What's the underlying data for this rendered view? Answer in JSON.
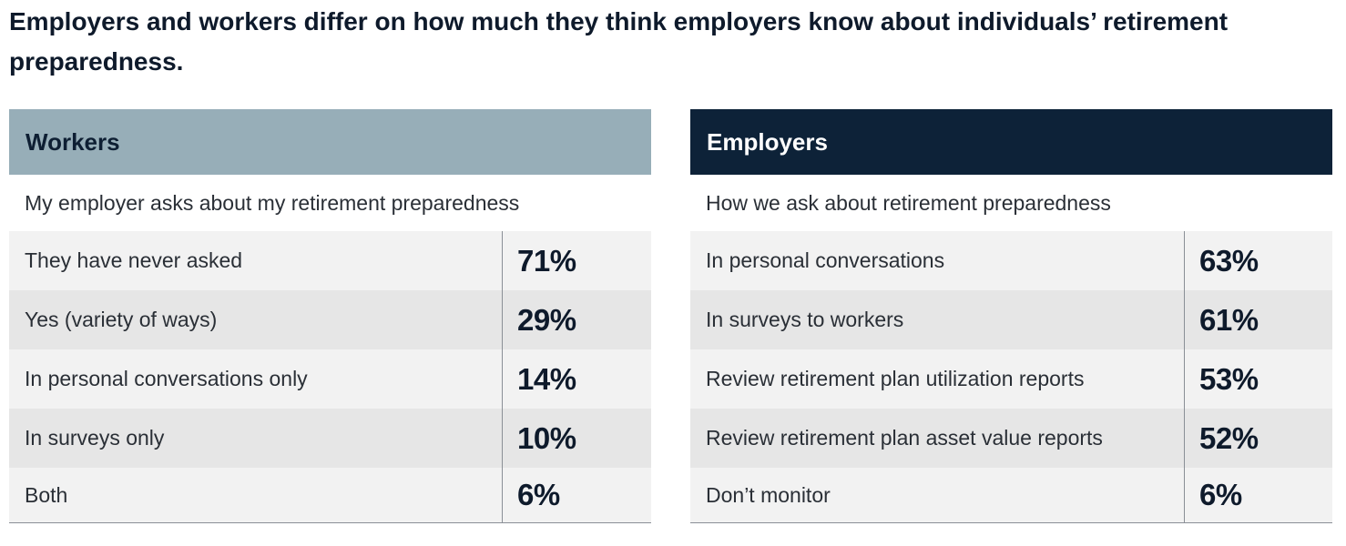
{
  "title": "Employers and workers differ on how much they think employers know about individuals’ retirement preparedness.",
  "workers": {
    "heading": "Workers",
    "subtitle": "My employer asks about my retirement preparedness",
    "rows": [
      {
        "label": "They have never asked",
        "value": "71%"
      },
      {
        "label": "Yes (variety of ways)",
        "value": "29%"
      },
      {
        "label": "In personal conversations only",
        "value": "14%"
      },
      {
        "label": "In surveys only",
        "value": "10%"
      },
      {
        "label": "Both",
        "value": "6%"
      }
    ]
  },
  "employers": {
    "heading": "Employers",
    "subtitle": "How we ask about retirement preparedness",
    "rows": [
      {
        "label": "In personal conversations",
        "value": "63%"
      },
      {
        "label": "In surveys to workers",
        "value": "61%"
      },
      {
        "label": "Review retirement plan utilization reports",
        "value": "53%"
      },
      {
        "label": "Review retirement plan asset value reports",
        "value": "52%"
      },
      {
        "label": "Don’t monitor",
        "value": "6%"
      }
    ]
  },
  "colors": {
    "workers_header": "#97aeb8",
    "employers_header": "#0d2238",
    "row_light": "#f2f2f2",
    "row_dark": "#e6e6e6"
  }
}
